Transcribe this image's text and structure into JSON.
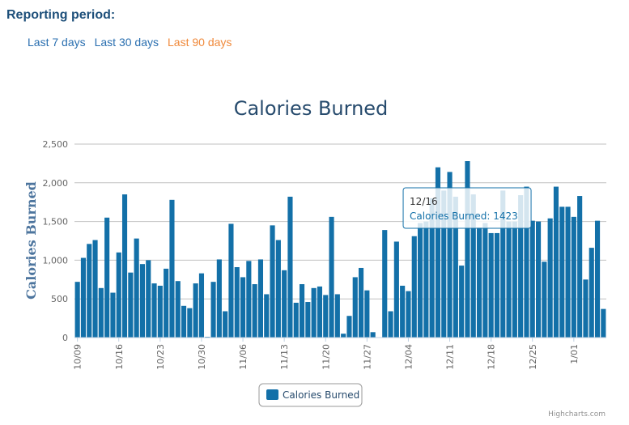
{
  "header": {
    "title": "Reporting period:",
    "links": [
      "Last 7 days",
      "Last 30 days",
      "Last 90 days"
    ],
    "active": 2,
    "link_color": "#2a6fb0",
    "active_color": "#f08a3c"
  },
  "chart_data": {
    "type": "bar",
    "title": "Calories Burned",
    "y_label": "Calories Burned",
    "categories": [
      "10/09",
      null,
      null,
      null,
      null,
      null,
      null,
      "10/16",
      null,
      null,
      null,
      null,
      null,
      null,
      "10/23",
      null,
      null,
      null,
      null,
      null,
      null,
      "10/30",
      null,
      null,
      null,
      null,
      null,
      null,
      "11/06",
      null,
      null,
      null,
      null,
      null,
      null,
      "11/13",
      null,
      null,
      null,
      null,
      null,
      null,
      "11/20",
      null,
      null,
      null,
      null,
      null,
      null,
      "11/27",
      null,
      null,
      null,
      null,
      null,
      null,
      "12/04",
      null,
      null,
      null,
      null,
      null,
      null,
      "12/11",
      null,
      null,
      null,
      null,
      null,
      null,
      "12/18",
      null,
      null,
      null,
      null,
      null,
      null,
      "12/25",
      null,
      null,
      null,
      null,
      null,
      null,
      "1/01",
      null,
      null,
      null,
      null,
      null
    ],
    "series": [
      {
        "name": "Calories Burned",
        "color": "#1370a8",
        "values": [
          720,
          1030,
          1210,
          1260,
          640,
          1550,
          580,
          1100,
          1850,
          840,
          1280,
          950,
          1000,
          700,
          670,
          890,
          1780,
          730,
          410,
          380,
          700,
          830,
          10,
          720,
          1010,
          340,
          1470,
          910,
          780,
          990,
          690,
          1010,
          560,
          1450,
          1260,
          870,
          1820,
          450,
          690,
          460,
          640,
          660,
          550,
          1560,
          560,
          50,
          280,
          780,
          900,
          610,
          70,
          0,
          1390,
          340,
          1240,
          670,
          600,
          1310,
          1480,
          1500,
          1800,
          2200,
          1900,
          2140,
          1820,
          930,
          2280,
          1850,
          1423,
          1480,
          1350,
          1350,
          1900,
          1500,
          1500,
          1840,
          1950,
          1510,
          1500,
          980,
          1540,
          1950,
          1690,
          1690,
          1560,
          1830,
          750,
          1160,
          1510,
          370
        ]
      }
    ],
    "ylim": [
      0,
      2500
    ],
    "yticks": [
      0,
      500,
      {
        "value": 1000,
        "label": "1,000"
      },
      {
        "value": 1500,
        "label": "1,500"
      },
      {
        "value": 2000,
        "label": "2,000"
      },
      {
        "value": 2500,
        "label": "2,500"
      }
    ],
    "grid": true,
    "tooltip": {
      "index": 68,
      "header": "12/16",
      "text": "Calories Burned: 1423"
    },
    "credit": "Highcharts.com"
  }
}
